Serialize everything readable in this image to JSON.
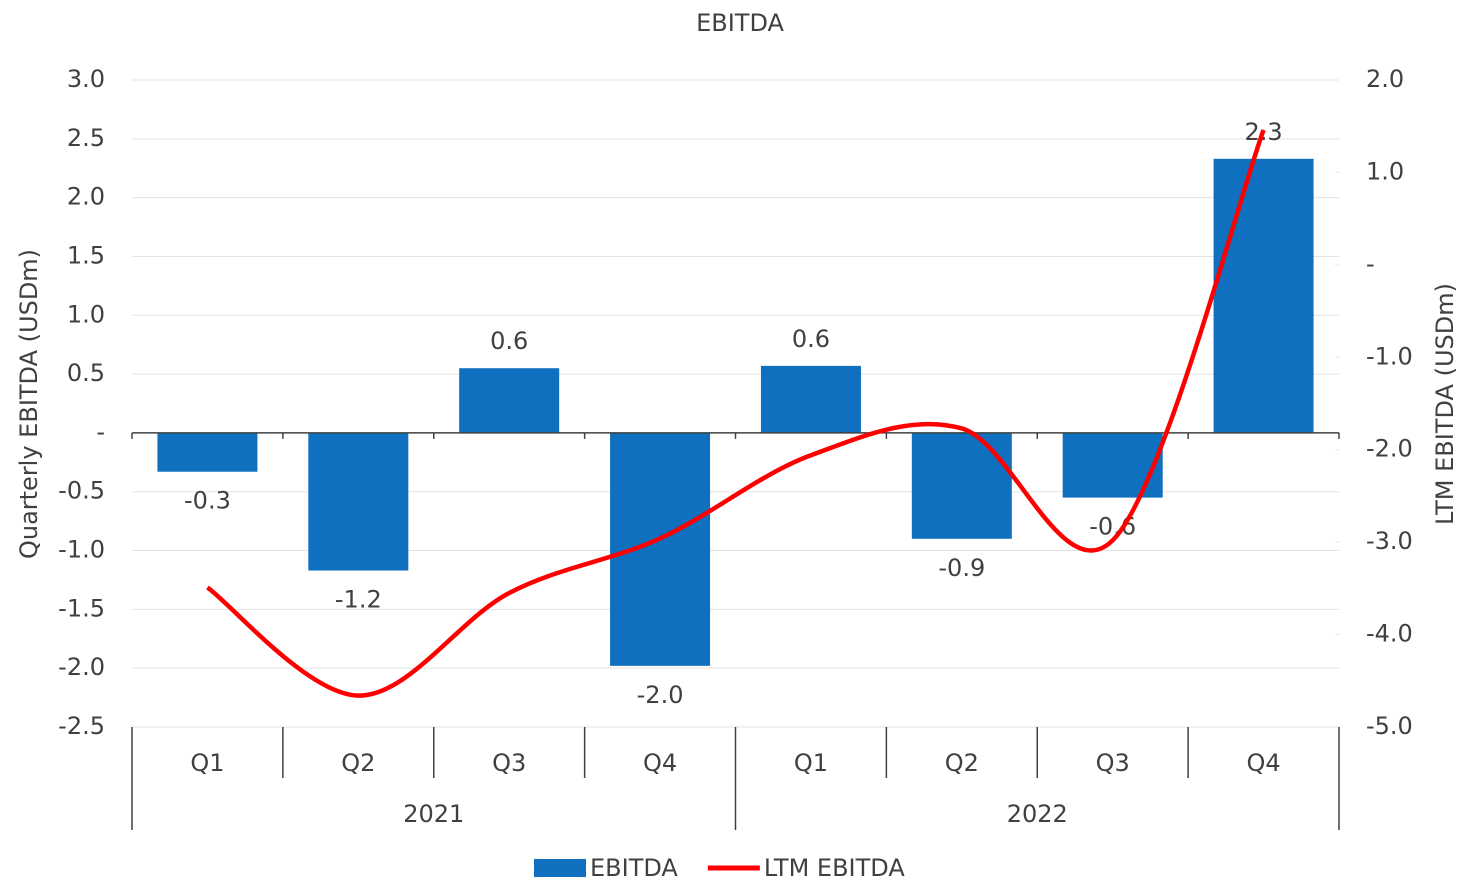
{
  "chart_data": {
    "type": "bar_line",
    "title": "EBITDA",
    "y_label": "Quarterly EBITDA (USDm)",
    "y2_label": "LTM EBITDA (USDm)",
    "categories": [
      "Q1",
      "Q2",
      "Q3",
      "Q4",
      "Q1",
      "Q2",
      "Q3",
      "Q4"
    ],
    "groups": [
      "2021",
      "2022"
    ],
    "series": [
      {
        "name": "EBITDA",
        "type": "bar",
        "color": "#0e70be",
        "values": [
          -0.33,
          -1.17,
          0.55,
          -1.98,
          0.57,
          -0.9,
          -0.55,
          2.33
        ],
        "value_labels": [
          "-0.3",
          "-1.2",
          "0.6",
          "-2.0",
          "0.6",
          "-0.9",
          "-0.6",
          "2.3"
        ]
      },
      {
        "name": "LTM EBITDA",
        "type": "line",
        "axis": "y2",
        "color": "#ff0000",
        "values": [
          -3.49,
          -4.66,
          -3.55,
          -2.96,
          -2.06,
          -1.77,
          -2.98,
          1.46
        ]
      }
    ],
    "ylim": [
      -2.5,
      3.0
    ],
    "yticks": [
      {
        "value": 3.0,
        "label": "3.0"
      },
      {
        "value": 2.5,
        "label": "2.5"
      },
      {
        "value": 2.0,
        "label": "2.0"
      },
      {
        "value": 1.5,
        "label": "1.5"
      },
      {
        "value": 1.0,
        "label": "1.0"
      },
      {
        "value": 0.5,
        "label": "0.5"
      },
      {
        "value": 0,
        "label": "-"
      },
      {
        "value": -0.5,
        "label": "-0.5"
      },
      {
        "value": -1.0,
        "label": "-1.0"
      },
      {
        "value": -1.5,
        "label": "-1.5"
      },
      {
        "value": -2.0,
        "label": "-2.0"
      },
      {
        "value": -2.5,
        "label": "-2.5"
      }
    ],
    "y2lim": [
      -5.0,
      2.0
    ],
    "y2ticks": [
      {
        "value": 2.0,
        "label": "2.0"
      },
      {
        "value": 1.0,
        "label": "1.0"
      },
      {
        "value": 0,
        "label": "-"
      },
      {
        "value": -1.0,
        "label": "-1.0"
      },
      {
        "value": -2.0,
        "label": "-2.0"
      },
      {
        "value": -3.0,
        "label": "-3.0"
      },
      {
        "value": -4.0,
        "label": "-4.0"
      },
      {
        "value": -5.0,
        "label": "-5.0"
      }
    ],
    "grid": true,
    "legend": "bottom"
  }
}
